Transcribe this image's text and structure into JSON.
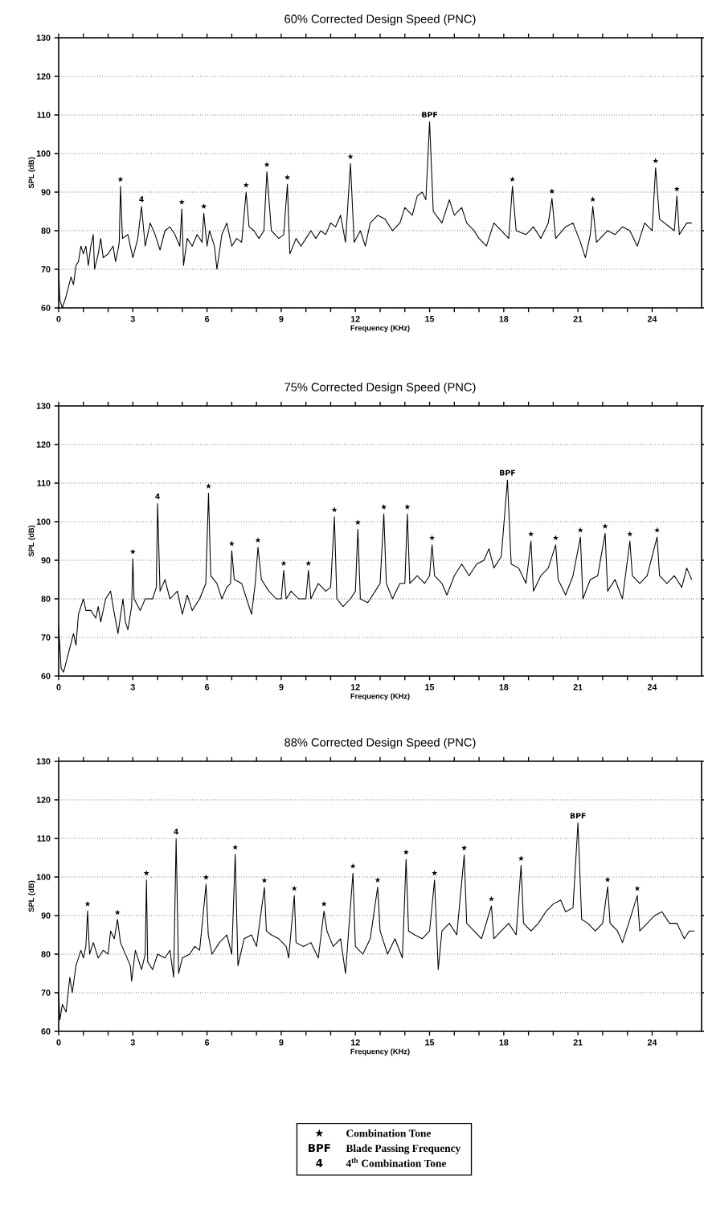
{
  "chart_data": [
    {
      "type": "line",
      "title": "60% Corrected Design Speed (PNC)",
      "xlabel": "Frequency (KHz)",
      "ylabel": "SPL (dB)",
      "color": "#000000",
      "grid": "y",
      "xlim": [
        0,
        26
      ],
      "ylim": [
        60,
        130
      ],
      "xticks": [
        0,
        {
          "value": 1,
          "label": null
        },
        {
          "value": 2,
          "label": null
        },
        3,
        {
          "value": 4,
          "label": null
        },
        {
          "value": 5,
          "label": null
        },
        6,
        {
          "value": 7,
          "label": null
        },
        {
          "value": 8,
          "label": null
        },
        9,
        {
          "value": 10,
          "label": null
        },
        {
          "value": 11,
          "label": null
        },
        12,
        {
          "value": 13,
          "label": null
        },
        {
          "value": 14,
          "label": null
        },
        15,
        {
          "value": 16,
          "label": null
        },
        {
          "value": 17,
          "label": null
        },
        18,
        {
          "value": 19,
          "label": null
        },
        {
          "value": 20,
          "label": null
        },
        21,
        {
          "value": 22,
          "label": null
        },
        {
          "value": 23,
          "label": null
        },
        24,
        {
          "value": 25,
          "label": null
        }
      ],
      "yticks": [
        60,
        70,
        80,
        90,
        100,
        110,
        120,
        130
      ],
      "x": [
        0,
        0.05,
        0.15,
        0.3,
        0.5,
        0.6,
        0.7,
        0.8,
        0.9,
        1.0,
        1.1,
        1.2,
        1.3,
        1.4,
        1.45,
        1.6,
        1.7,
        1.8,
        2.0,
        2.2,
        2.3,
        2.4,
        2.45,
        2.5,
        2.58,
        2.8,
        3.0,
        3.2,
        3.35,
        3.5,
        3.7,
        3.9,
        4.1,
        4.3,
        4.5,
        4.7,
        4.9,
        4.98,
        5.05,
        5.2,
        5.4,
        5.6,
        5.8,
        5.87,
        6.0,
        6.1,
        6.3,
        6.4,
        6.6,
        6.8,
        7.0,
        7.2,
        7.4,
        7.58,
        7.7,
        7.9,
        8.1,
        8.3,
        8.42,
        8.6,
        8.9,
        9.1,
        9.25,
        9.35,
        9.6,
        9.8,
        10.0,
        10.2,
        10.4,
        10.6,
        10.8,
        11.0,
        11.2,
        11.4,
        11.6,
        11.8,
        11.95,
        12.2,
        12.4,
        12.6,
        12.9,
        13.2,
        13.5,
        13.8,
        14.0,
        14.3,
        14.5,
        14.7,
        14.85,
        15.0,
        15.15,
        15.5,
        15.8,
        16.0,
        16.3,
        16.5,
        16.8,
        17.0,
        17.3,
        17.6,
        17.9,
        18.2,
        18.35,
        18.5,
        18.9,
        19.2,
        19.5,
        19.8,
        19.95,
        20.1,
        20.5,
        20.8,
        21.1,
        21.3,
        21.5,
        21.6,
        21.75,
        22.2,
        22.5,
        22.8,
        23.1,
        23.4,
        23.7,
        24.0,
        24.14,
        24.3,
        24.7,
        24.9,
        25.0,
        25.1,
        25.4,
        25.6
      ],
      "values": [
        70,
        62,
        60,
        63,
        68,
        66,
        71,
        72,
        76,
        74,
        76,
        71,
        76,
        79,
        70,
        74,
        78,
        73,
        74,
        76,
        72,
        75,
        77,
        91.5,
        78,
        79,
        73,
        78,
        86.3,
        76,
        82,
        79,
        75,
        80,
        81,
        79,
        76,
        85.6,
        71,
        78,
        76,
        79,
        77,
        84.5,
        76,
        80,
        76,
        70,
        79,
        82,
        76,
        78,
        77,
        90,
        81,
        80,
        78,
        80,
        95.3,
        80,
        78,
        79,
        92,
        74,
        78,
        76,
        78,
        80,
        78,
        80,
        79,
        82,
        81,
        84,
        77,
        97.4,
        77,
        80,
        76,
        82,
        84,
        83,
        80,
        82,
        86,
        84,
        89,
        90,
        88,
        108.2,
        85,
        82,
        88,
        84,
        86,
        82,
        80,
        78,
        76,
        82,
        80,
        78,
        91.5,
        80,
        79,
        81,
        78,
        82,
        88.4,
        78,
        81,
        82,
        77,
        73,
        79,
        86.3,
        77,
        80,
        79,
        81,
        80,
        76,
        82,
        80,
        96.3,
        83,
        81,
        80,
        89,
        79,
        82,
        82
      ],
      "annotations": [
        {
          "text": "★",
          "x": 2.5,
          "y": 91.5
        },
        {
          "text": "4",
          "x": 3.35,
          "y": 86.3
        },
        {
          "text": "★",
          "x": 4.98,
          "y": 85.6
        },
        {
          "text": "★",
          "x": 5.87,
          "y": 84.5
        },
        {
          "text": "★",
          "x": 7.58,
          "y": 90
        },
        {
          "text": "★",
          "x": 8.42,
          "y": 95.3
        },
        {
          "text": "★",
          "x": 9.25,
          "y": 92
        },
        {
          "text": "★",
          "x": 11.8,
          "y": 97.4
        },
        {
          "text": "BPF",
          "x": 15.0,
          "y": 108.2
        },
        {
          "text": "★",
          "x": 18.35,
          "y": 91.5
        },
        {
          "text": "★",
          "x": 19.95,
          "y": 88.4
        },
        {
          "text": "★",
          "x": 21.6,
          "y": 86.3
        },
        {
          "text": "★",
          "x": 24.14,
          "y": 96.3
        },
        {
          "text": "★",
          "x": 25.0,
          "y": 89
        }
      ]
    },
    {
      "type": "line",
      "title": "75% Corrected Design Speed (PNC)",
      "xlabel": "Frequency (KHz)",
      "ylabel": "SPL (dB)",
      "color": "#000000",
      "grid": "y",
      "xlim": [
        0,
        26
      ],
      "ylim": [
        60,
        130
      ],
      "xticks": [
        0,
        {
          "value": 1,
          "label": null
        },
        {
          "value": 2,
          "label": null
        },
        3,
        {
          "value": 4,
          "label": null
        },
        {
          "value": 5,
          "label": null
        },
        6,
        {
          "value": 7,
          "label": null
        },
        {
          "value": 8,
          "label": null
        },
        9,
        {
          "value": 10,
          "label": null
        },
        {
          "value": 11,
          "label": null
        },
        12,
        {
          "value": 13,
          "label": null
        },
        {
          "value": 14,
          "label": null
        },
        15,
        {
          "value": 16,
          "label": null
        },
        {
          "value": 17,
          "label": null
        },
        18,
        {
          "value": 19,
          "label": null
        },
        {
          "value": 20,
          "label": null
        },
        21,
        {
          "value": 22,
          "label": null
        },
        {
          "value": 23,
          "label": null
        },
        24,
        {
          "value": 25,
          "label": null
        }
      ],
      "yticks": [
        60,
        70,
        80,
        90,
        100,
        110,
        120,
        130
      ],
      "x": [
        0,
        0.1,
        0.2,
        0.4,
        0.6,
        0.7,
        0.8,
        1.0,
        1.1,
        1.3,
        1.5,
        1.6,
        1.7,
        1.9,
        2.1,
        2.2,
        2.4,
        2.6,
        2.7,
        2.8,
        2.95,
        3.0,
        3.05,
        3.3,
        3.5,
        3.8,
        3.95,
        4.0,
        4.1,
        4.3,
        4.5,
        4.8,
        5.0,
        5.2,
        5.4,
        5.7,
        5.95,
        6.06,
        6.15,
        6.4,
        6.6,
        6.8,
        6.95,
        7.0,
        7.1,
        7.4,
        7.6,
        7.8,
        7.95,
        8.06,
        8.2,
        8.5,
        8.8,
        9.0,
        9.1,
        9.2,
        9.4,
        9.7,
        10.0,
        10.1,
        10.2,
        10.5,
        10.8,
        11.0,
        11.15,
        11.25,
        11.5,
        11.8,
        12.0,
        12.1,
        12.2,
        12.5,
        12.8,
        13.0,
        13.15,
        13.25,
        13.5,
        13.8,
        14.0,
        14.1,
        14.2,
        14.5,
        14.8,
        15.0,
        15.1,
        15.2,
        15.5,
        15.7,
        16.0,
        16.3,
        16.6,
        16.9,
        17.2,
        17.4,
        17.6,
        17.9,
        18.15,
        18.3,
        18.6,
        18.9,
        19.1,
        19.2,
        19.5,
        19.8,
        20.1,
        20.2,
        20.5,
        20.8,
        21.1,
        21.2,
        21.5,
        21.8,
        22.1,
        22.2,
        22.5,
        22.8,
        23.1,
        23.2,
        23.5,
        23.8,
        24.2,
        24.3,
        24.6,
        24.9,
        25.2,
        25.4,
        25.6
      ],
      "values": [
        73,
        62,
        61,
        66,
        71,
        68,
        76,
        80,
        77,
        77,
        75,
        78,
        74,
        80,
        82,
        78,
        71,
        80,
        74,
        72,
        78,
        90.4,
        80,
        77,
        80,
        80,
        83,
        104.7,
        82,
        85,
        80,
        82,
        76,
        81,
        77,
        80,
        84,
        107.4,
        86,
        84,
        80,
        83,
        84,
        92.5,
        85,
        84,
        80,
        76,
        84,
        93.4,
        85,
        82,
        80,
        80,
        87.4,
        80,
        82,
        80,
        80,
        87.4,
        80,
        84,
        82,
        83,
        101.3,
        80,
        78,
        80,
        82,
        98,
        80,
        79,
        82,
        84,
        102,
        84,
        80,
        84,
        84,
        102,
        84,
        86,
        84,
        86,
        94,
        86,
        84,
        81,
        86,
        89,
        86,
        89,
        90,
        93,
        88,
        91,
        110.8,
        89,
        88,
        84,
        95,
        82,
        86,
        88,
        94,
        85,
        81,
        86,
        96,
        80,
        85,
        86,
        97,
        82,
        85,
        80,
        95,
        86,
        84,
        86,
        96,
        86,
        84,
        86,
        83,
        88,
        85
      ],
      "annotations": [
        {
          "text": "★",
          "x": 3.0,
          "y": 90.4
        },
        {
          "text": "4",
          "x": 4.0,
          "y": 104.7
        },
        {
          "text": "★",
          "x": 6.06,
          "y": 107.4
        },
        {
          "text": "★",
          "x": 7.0,
          "y": 92.5
        },
        {
          "text": "★",
          "x": 8.06,
          "y": 93.4
        },
        {
          "text": "★",
          "x": 9.1,
          "y": 87.4
        },
        {
          "text": "★",
          "x": 10.1,
          "y": 87.4
        },
        {
          "text": "★",
          "x": 11.15,
          "y": 101.3
        },
        {
          "text": "★",
          "x": 12.1,
          "y": 98
        },
        {
          "text": "★",
          "x": 13.15,
          "y": 102
        },
        {
          "text": "★",
          "x": 14.1,
          "y": 102
        },
        {
          "text": "★",
          "x": 15.1,
          "y": 94
        },
        {
          "text": "BPF",
          "x": 18.15,
          "y": 110.8
        },
        {
          "text": "★",
          "x": 19.1,
          "y": 95
        },
        {
          "text": "★",
          "x": 20.1,
          "y": 94
        },
        {
          "text": "★",
          "x": 21.1,
          "y": 96
        },
        {
          "text": "★",
          "x": 22.1,
          "y": 97
        },
        {
          "text": "★",
          "x": 23.1,
          "y": 95
        },
        {
          "text": "★",
          "x": 24.2,
          "y": 96
        }
      ]
    },
    {
      "type": "line",
      "title": "88% Corrected Design Speed (PNC)",
      "xlabel": "Frequency (KHz)",
      "ylabel": "SPL (dB)",
      "color": "#000000",
      "grid": "y",
      "xlim": [
        0,
        26
      ],
      "ylim": [
        60,
        130
      ],
      "xticks": [
        0,
        {
          "value": 1,
          "label": null
        },
        {
          "value": 2,
          "label": null
        },
        3,
        {
          "value": 4,
          "label": null
        },
        {
          "value": 5,
          "label": null
        },
        6,
        {
          "value": 7,
          "label": null
        },
        {
          "value": 8,
          "label": null
        },
        9,
        {
          "value": 10,
          "label": null
        },
        {
          "value": 11,
          "label": null
        },
        12,
        {
          "value": 13,
          "label": null
        },
        {
          "value": 14,
          "label": null
        },
        15,
        {
          "value": 16,
          "label": null
        },
        {
          "value": 17,
          "label": null
        },
        18,
        {
          "value": 19,
          "label": null
        },
        {
          "value": 20,
          "label": null
        },
        21,
        {
          "value": 22,
          "label": null
        },
        {
          "value": 23,
          "label": null
        },
        24,
        {
          "value": 25,
          "label": null
        }
      ],
      "yticks": [
        60,
        70,
        80,
        90,
        100,
        110,
        120,
        130
      ],
      "x": [
        0,
        0.05,
        0.15,
        0.3,
        0.45,
        0.55,
        0.7,
        0.8,
        0.9,
        1.0,
        1.1,
        1.17,
        1.25,
        1.4,
        1.6,
        1.8,
        2.0,
        2.1,
        2.25,
        2.38,
        2.5,
        2.7,
        2.9,
        2.95,
        3.1,
        3.35,
        3.5,
        3.55,
        3.6,
        3.8,
        4.0,
        4.3,
        4.5,
        4.65,
        4.75,
        4.85,
        5.0,
        5.3,
        5.5,
        5.7,
        5.96,
        6.05,
        6.2,
        6.5,
        6.8,
        7.0,
        7.14,
        7.25,
        7.5,
        7.8,
        8.0,
        8.32,
        8.4,
        8.6,
        8.9,
        9.2,
        9.3,
        9.53,
        9.6,
        9.9,
        10.2,
        10.5,
        10.73,
        10.85,
        11.1,
        11.4,
        11.6,
        11.9,
        12.0,
        12.3,
        12.6,
        12.9,
        13.0,
        13.3,
        13.6,
        13.9,
        14.05,
        14.15,
        14.4,
        14.7,
        15.0,
        15.2,
        15.35,
        15.5,
        15.8,
        16.1,
        16.4,
        16.5,
        16.8,
        17.1,
        17.5,
        17.6,
        17.9,
        18.2,
        18.5,
        18.7,
        18.8,
        19.1,
        19.4,
        19.7,
        20.0,
        20.3,
        20.5,
        20.8,
        21.0,
        21.15,
        21.4,
        21.7,
        22.0,
        22.2,
        22.3,
        22.6,
        22.8,
        23.1,
        23.4,
        23.5,
        23.8,
        24.1,
        24.4,
        24.7,
        25.0,
        25.3,
        25.5,
        25.7
      ],
      "values": [
        70,
        63,
        67,
        65,
        74,
        70,
        77,
        79,
        81,
        79,
        82,
        91.2,
        80,
        83,
        79,
        81,
        80,
        86,
        84,
        89,
        83,
        80,
        77,
        73,
        81,
        76,
        80,
        99.2,
        78,
        76,
        80,
        79,
        81,
        74,
        109.9,
        75,
        79,
        80,
        82,
        81,
        98.1,
        85,
        80,
        83,
        85,
        80,
        105.9,
        77,
        84,
        85,
        82,
        97.3,
        86,
        85,
        84,
        82,
        79,
        95.2,
        83,
        82,
        83,
        79,
        91.2,
        86,
        82,
        84,
        75,
        101,
        82,
        80,
        84,
        97.4,
        86,
        80,
        84,
        79,
        104.6,
        86,
        85,
        84,
        86,
        99.2,
        76,
        86,
        88,
        85,
        105.7,
        88,
        86,
        84,
        92.5,
        84,
        86,
        88,
        85,
        103,
        88,
        86,
        88,
        91,
        93,
        94,
        91,
        92,
        114,
        89,
        88,
        86,
        88,
        97.5,
        88,
        86,
        83,
        89,
        95.2,
        86,
        88,
        90,
        91,
        88,
        88,
        84,
        86,
        86
      ],
      "annotations": [
        {
          "text": "★",
          "x": 1.17,
          "y": 91.2
        },
        {
          "text": "★",
          "x": 2.38,
          "y": 89
        },
        {
          "text": "★",
          "x": 3.55,
          "y": 99.2
        },
        {
          "text": "4",
          "x": 4.75,
          "y": 109.9
        },
        {
          "text": "★",
          "x": 5.96,
          "y": 98.1
        },
        {
          "text": "★",
          "x": 7.14,
          "y": 105.9
        },
        {
          "text": "★",
          "x": 8.32,
          "y": 97.3
        },
        {
          "text": "★",
          "x": 9.53,
          "y": 95.2
        },
        {
          "text": "★",
          "x": 10.73,
          "y": 91.2
        },
        {
          "text": "★",
          "x": 11.9,
          "y": 101
        },
        {
          "text": "★",
          "x": 12.9,
          "y": 97.4
        },
        {
          "text": "★",
          "x": 14.05,
          "y": 104.6
        },
        {
          "text": "★",
          "x": 15.2,
          "y": 99.2
        },
        {
          "text": "★",
          "x": 16.4,
          "y": 105.7
        },
        {
          "text": "★",
          "x": 17.5,
          "y": 92.5
        },
        {
          "text": "★",
          "x": 18.7,
          "y": 103
        },
        {
          "text": "BPF",
          "x": 21.0,
          "y": 114
        },
        {
          "text": "★",
          "x": 22.2,
          "y": 97.5
        },
        {
          "text": "★",
          "x": 23.4,
          "y": 95.2
        }
      ]
    },
    {
      "type": "other",
      "annotations": [
        "★",
        "Combination Tone",
        "BPF",
        "Blade Passing Frequency",
        "4",
        "4$^{th}$ Combination Tone"
      ]
    }
  ]
}
